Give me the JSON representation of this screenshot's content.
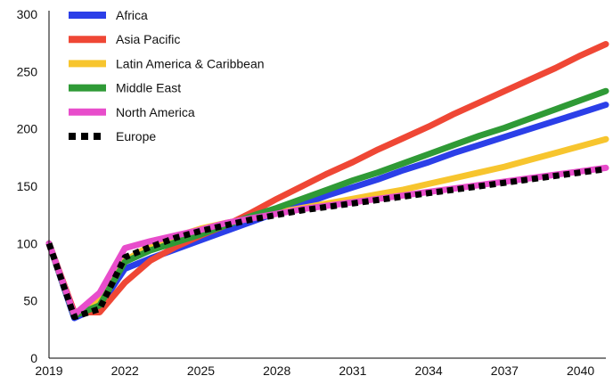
{
  "chart_data": {
    "type": "line",
    "title": "",
    "xlabel": "",
    "ylabel": "",
    "x": [
      2019,
      2020,
      2021,
      2022,
      2023,
      2024,
      2025,
      2026,
      2027,
      2028,
      2029,
      2030,
      2031,
      2032,
      2033,
      2034,
      2035,
      2036,
      2037,
      2038,
      2039,
      2040,
      2041
    ],
    "xlim": [
      2019,
      2041
    ],
    "ylim": [
      0,
      300
    ],
    "x_ticks": [
      2019,
      2022,
      2025,
      2028,
      2031,
      2034,
      2037,
      2040
    ],
    "x_tick_labels": [
      "2019",
      "2022",
      "2025",
      "2028",
      "2031",
      "2034",
      "2037",
      "2040"
    ],
    "y_ticks": [
      0,
      50,
      100,
      150,
      200,
      250,
      300
    ],
    "y_tick_labels": [
      "0",
      "50",
      "100",
      "150",
      "200",
      "250",
      "300"
    ],
    "grid": false,
    "legend_position": "top-left",
    "series": [
      {
        "name": "Africa",
        "color": "#2b3fe8",
        "style": "solid",
        "values": [
          100,
          35,
          45,
          78,
          87,
          95,
          103,
          111,
          119,
          127,
          134,
          142,
          149,
          156,
          164,
          171,
          179,
          186,
          193,
          200,
          207,
          214,
          221
        ]
      },
      {
        "name": "Asia Pacific",
        "color": "#ef4735",
        "style": "solid",
        "values": [
          100,
          40,
          40,
          66,
          85,
          97,
          107,
          116,
          127,
          139,
          150,
          161,
          171,
          182,
          192,
          202,
          213,
          223,
          233,
          243,
          253,
          264,
          274
        ]
      },
      {
        "name": "Latin America & Caribbean",
        "color": "#f7c52e",
        "style": "solid",
        "values": [
          100,
          37,
          52,
          85,
          98,
          106,
          113,
          118,
          122,
          127,
          131,
          135,
          139,
          143,
          147,
          152,
          157,
          162,
          167,
          173,
          179,
          185,
          191
        ]
      },
      {
        "name": "Middle East",
        "color": "#2f9a36",
        "style": "solid",
        "values": [
          100,
          37,
          46,
          84,
          94,
          101,
          108,
          116,
          124,
          131,
          139,
          147,
          155,
          162,
          170,
          178,
          186,
          194,
          201,
          209,
          217,
          225,
          233
        ]
      },
      {
        "name": "North America",
        "color": "#e84dcb",
        "style": "solid",
        "values": [
          100,
          38,
          57,
          96,
          102,
          107,
          112,
          118,
          122,
          126,
          130,
          133,
          136,
          139,
          142,
          145,
          148,
          151,
          154,
          157,
          160,
          163,
          166
        ]
      },
      {
        "name": "Europe",
        "color": "#000000",
        "style": "dotted",
        "values": [
          100,
          36,
          43,
          88,
          97,
          105,
          111,
          116,
          121,
          125,
          129,
          132,
          135,
          138,
          141,
          144,
          147,
          150,
          153,
          156,
          159,
          162,
          165
        ]
      }
    ]
  }
}
